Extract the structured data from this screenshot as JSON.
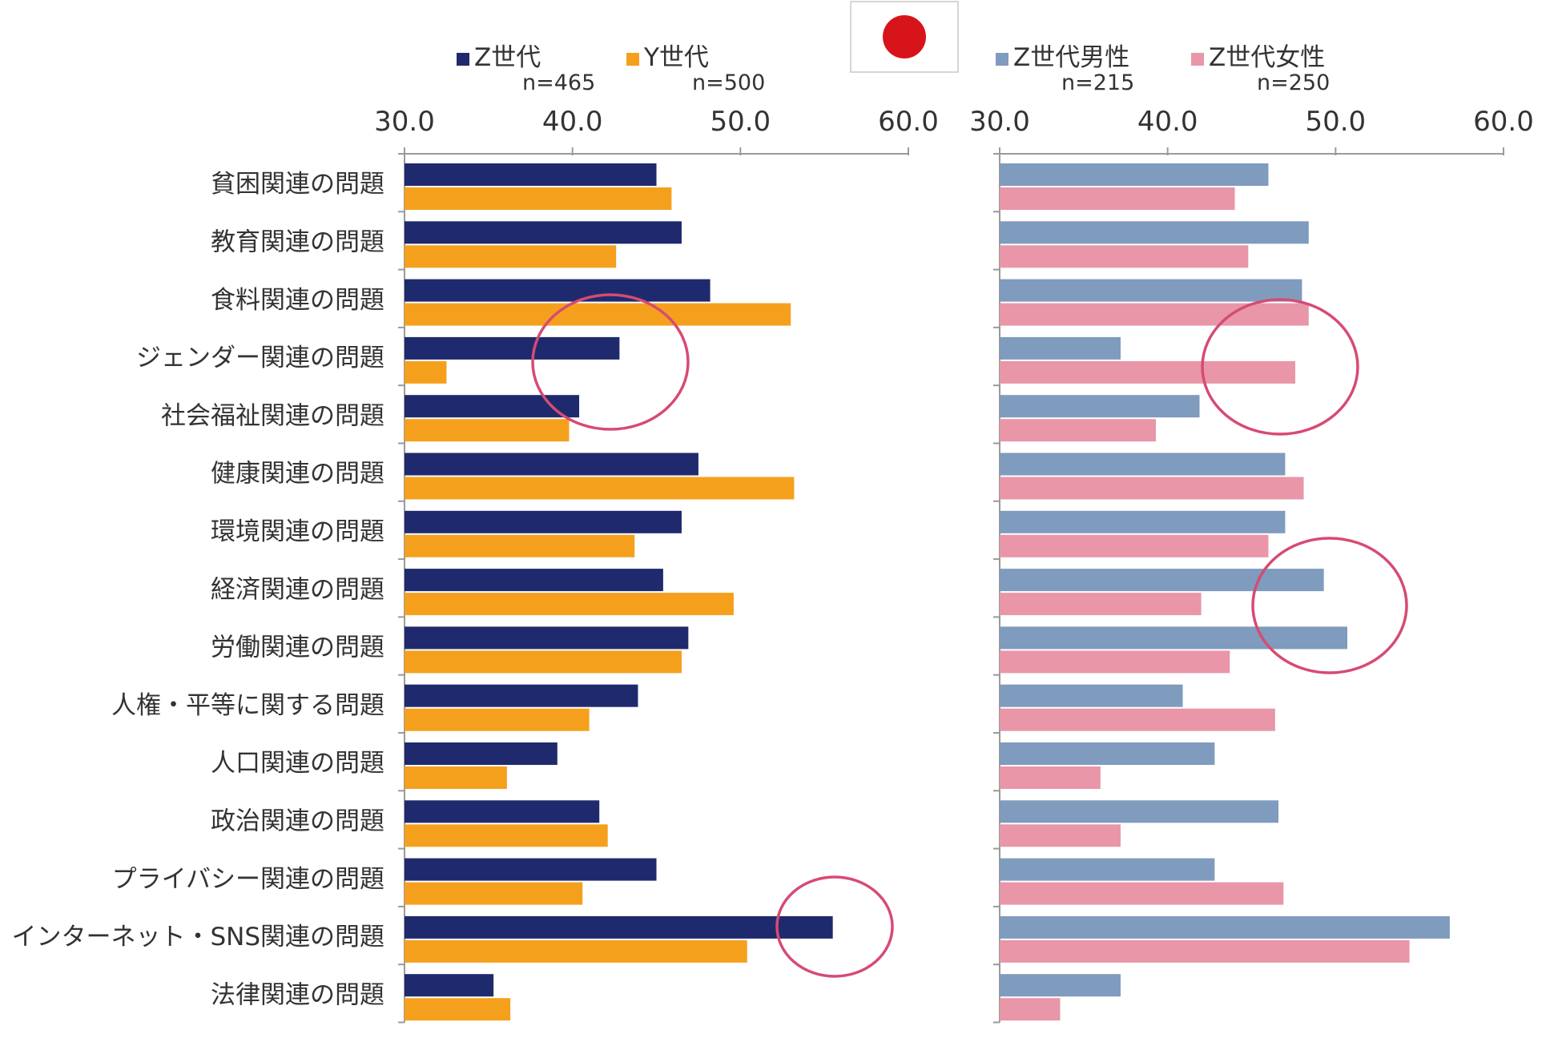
{
  "colors": {
    "z_gen": "#1f2a6e",
    "y_gen": "#f5a01d",
    "z_male": "#7f9bbd",
    "z_female": "#e896a8",
    "axis": "#9a9a9a",
    "circle": "#d64b73",
    "flag_red": "#d7141a",
    "text": "#333333"
  },
  "flag": {
    "icon": "japan-flag-icon"
  },
  "chart_data": [
    {
      "type": "bar",
      "orientation": "horizontal",
      "xlim": [
        30,
        60
      ],
      "ticks": [
        "30.0",
        "40.0",
        "50.0",
        "60.0"
      ],
      "categories": [
        "貧困関連の問題",
        "教育関連の問題",
        "食料関連の問題",
        "ジェンダー関連の問題",
        "社会福祉関連の問題",
        "健康関連の問題",
        "環境関連の問題",
        "経済関連の問題",
        "労働関連の問題",
        "人権・平等に関する問題",
        "人口関連の問題",
        "政治関連の問題",
        "プライバシー関連の問題",
        "インターネット・SNS関連の問題",
        "法律関連の問題"
      ],
      "series": [
        {
          "name": "Z世代",
          "n": "n=465",
          "color": "#1f2a6e",
          "values": [
            45.0,
            46.5,
            48.2,
            42.8,
            40.4,
            47.5,
            46.5,
            45.4,
            46.9,
            43.9,
            39.1,
            41.6,
            45.0,
            55.5,
            35.3
          ]
        },
        {
          "name": "Y世代",
          "n": "n=500",
          "color": "#f5a01d",
          "values": [
            45.9,
            42.6,
            53.0,
            32.5,
            39.8,
            53.2,
            43.7,
            49.6,
            46.5,
            41.0,
            36.1,
            42.1,
            40.6,
            50.4,
            36.3
          ]
        }
      ],
      "annotations": [
        {
          "type": "circle",
          "category": "ジェンダー関連の問題"
        },
        {
          "type": "circle",
          "category": "インターネット・SNS関連の問題"
        }
      ]
    },
    {
      "type": "bar",
      "orientation": "horizontal",
      "xlim": [
        30,
        60
      ],
      "ticks": [
        "30.0",
        "40.0",
        "50.0",
        "60.0"
      ],
      "categories": [
        "貧困関連の問題",
        "教育関連の問題",
        "食料関連の問題",
        "ジェンダー関連の問題",
        "社会福祉関連の問題",
        "健康関連の問題",
        "環境関連の問題",
        "経済関連の問題",
        "労働関連の問題",
        "人権・平等に関する問題",
        "人口関連の問題",
        "政治関連の問題",
        "プライバシー関連の問題",
        "インターネット・SNS関連の問題",
        "法律関連の問題"
      ],
      "series": [
        {
          "name": "Z世代男性",
          "n": "n=215",
          "color": "#7f9bbd",
          "values": [
            46.0,
            48.4,
            48.0,
            37.2,
            41.9,
            47.0,
            47.0,
            49.3,
            50.7,
            40.9,
            42.8,
            46.6,
            42.8,
            56.8,
            37.2
          ]
        },
        {
          "name": "Z世代女性",
          "n": "n=250",
          "color": "#e896a8",
          "values": [
            44.0,
            44.8,
            48.4,
            47.6,
            39.3,
            48.1,
            46.0,
            42.0,
            43.7,
            46.4,
            36.0,
            37.2,
            46.9,
            54.4,
            33.6
          ]
        }
      ],
      "annotations": [
        {
          "type": "circle",
          "category": "ジェンダー関連の問題"
        },
        {
          "type": "circle",
          "category": "経済関連の問題"
        }
      ]
    }
  ]
}
